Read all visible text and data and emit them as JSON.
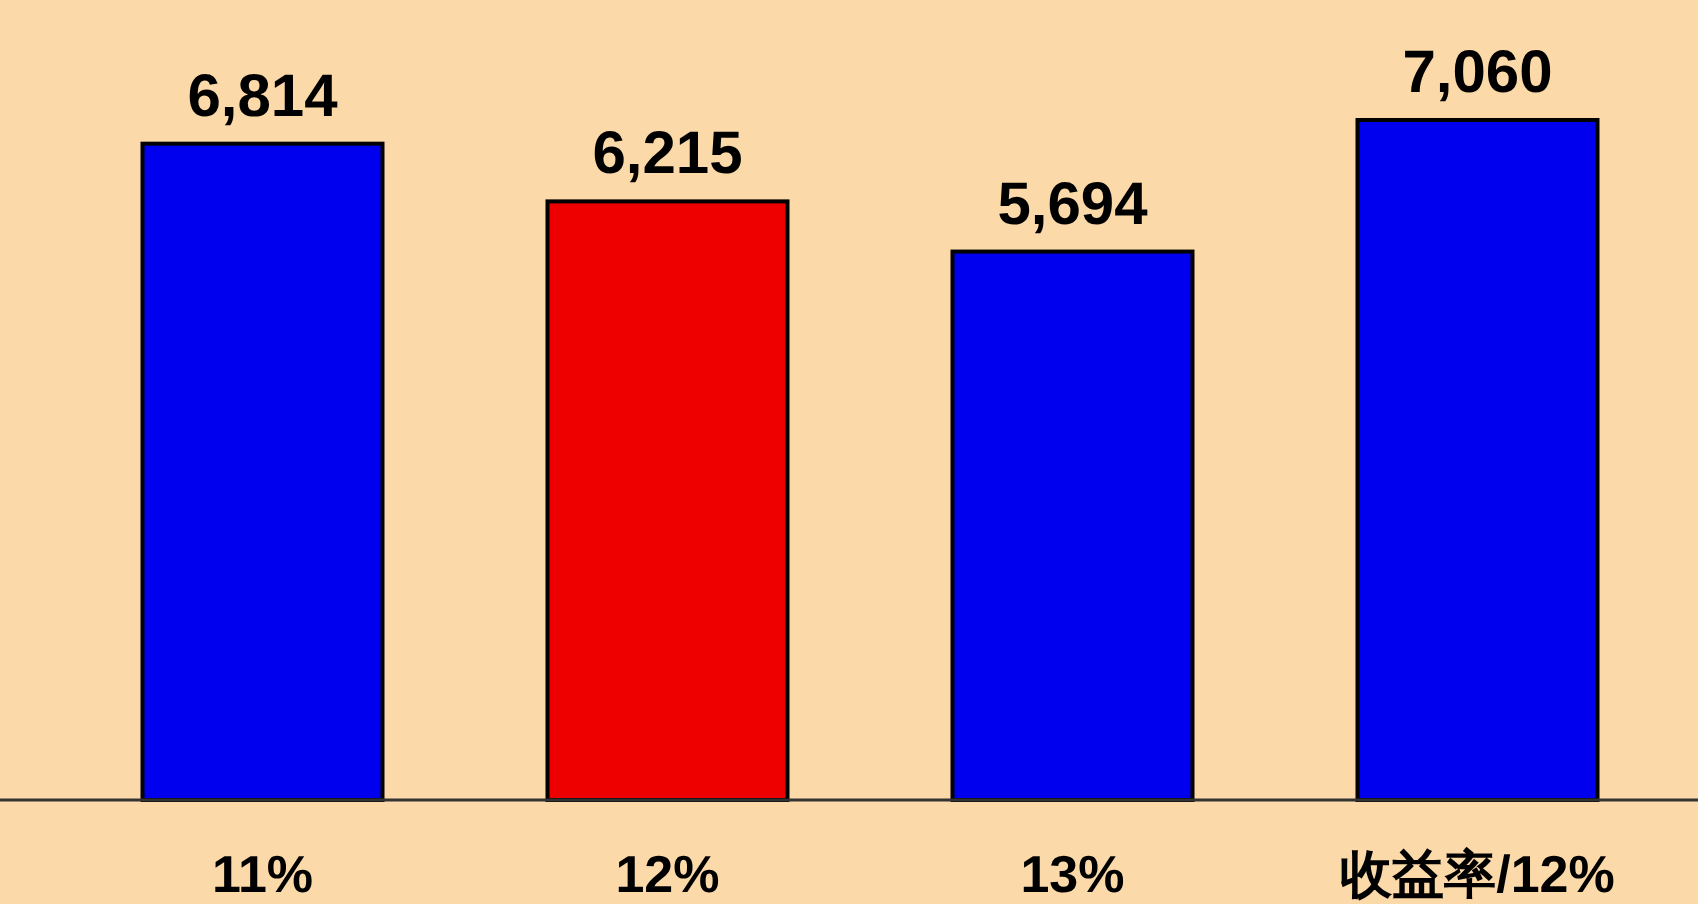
{
  "chart_data": {
    "type": "bar",
    "categories": [
      "11%",
      "12%",
      "13%",
      "收益率/12%"
    ],
    "values": [
      6814,
      6215,
      5694,
      7060
    ],
    "colors": [
      "#0000ee",
      "#ee0000",
      "#0000ee",
      "#0000ee"
    ],
    "value_labels": [
      "6,814",
      "6,215",
      "5,694",
      "7,060"
    ]
  }
}
